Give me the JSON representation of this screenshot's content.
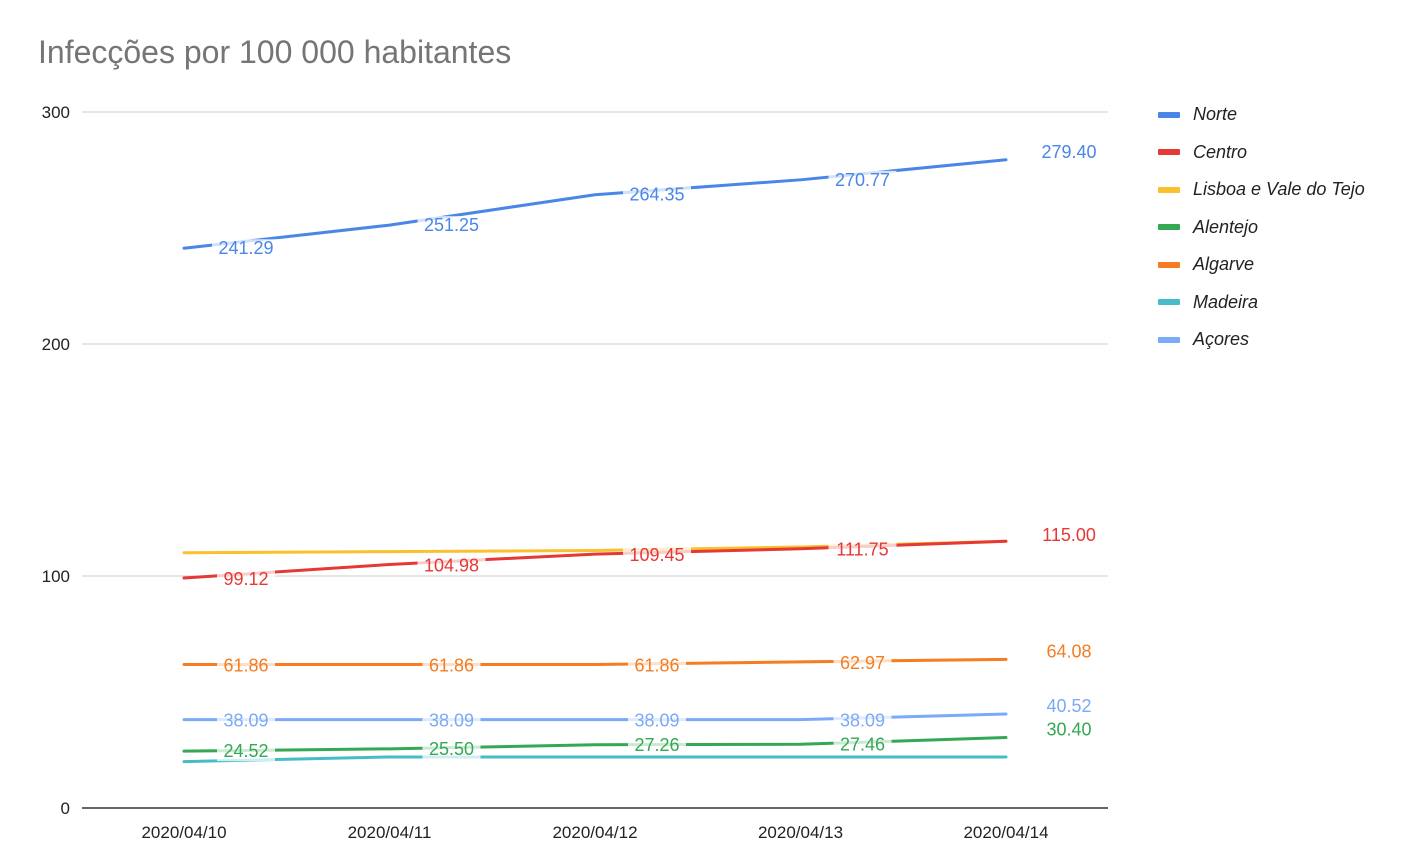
{
  "chart_data": {
    "type": "line",
    "title": "Infecções por 100 000 habitantes",
    "xlabel": "",
    "ylabel": "",
    "categories": [
      "2020/04/10",
      "2020/04/11",
      "2020/04/12",
      "2020/04/13",
      "2020/04/14"
    ],
    "yticks": [
      "0",
      "100",
      "200",
      "300"
    ],
    "ylim": [
      0,
      300
    ],
    "legend_position": "right",
    "series": [
      {
        "name": "Norte",
        "color": "#4a86e8",
        "values": [
          241.29,
          251.25,
          264.35,
          270.77,
          279.4
        ],
        "labels": [
          "241.29",
          "251.25",
          "264.35",
          "270.77",
          "279.40"
        ]
      },
      {
        "name": "Centro",
        "color": "#e53935",
        "values": [
          99.12,
          104.98,
          109.45,
          111.75,
          115.0
        ],
        "labels": [
          "99.12",
          "104.98",
          "109.45",
          "111.75",
          "115.00"
        ]
      },
      {
        "name": "Lisboa e Vale do Tejo",
        "color": "#fbc02d",
        "values": [
          110.0,
          110.5,
          111.0,
          112.5,
          115.0
        ],
        "labels": []
      },
      {
        "name": "Alentejo",
        "color": "#34a853",
        "values": [
          24.52,
          25.5,
          27.26,
          27.46,
          30.4
        ],
        "labels": [
          "24.52",
          "25.50",
          "27.26",
          "27.46",
          "30.40"
        ]
      },
      {
        "name": "Algarve",
        "color": "#f57c20",
        "values": [
          61.86,
          61.86,
          61.86,
          62.97,
          64.08
        ],
        "labels": [
          "61.86",
          "61.86",
          "61.86",
          "62.97",
          "64.08"
        ]
      },
      {
        "name": "Madeira",
        "color": "#46bdc6",
        "values": [
          20.0,
          22.0,
          22.0,
          22.0,
          22.0
        ],
        "labels": []
      },
      {
        "name": "Açores",
        "color": "#7baaf7",
        "values": [
          38.09,
          38.09,
          38.09,
          38.09,
          40.52
        ],
        "labels": [
          "38.09",
          "38.09",
          "38.09",
          "38.09",
          "40.52"
        ]
      }
    ]
  }
}
